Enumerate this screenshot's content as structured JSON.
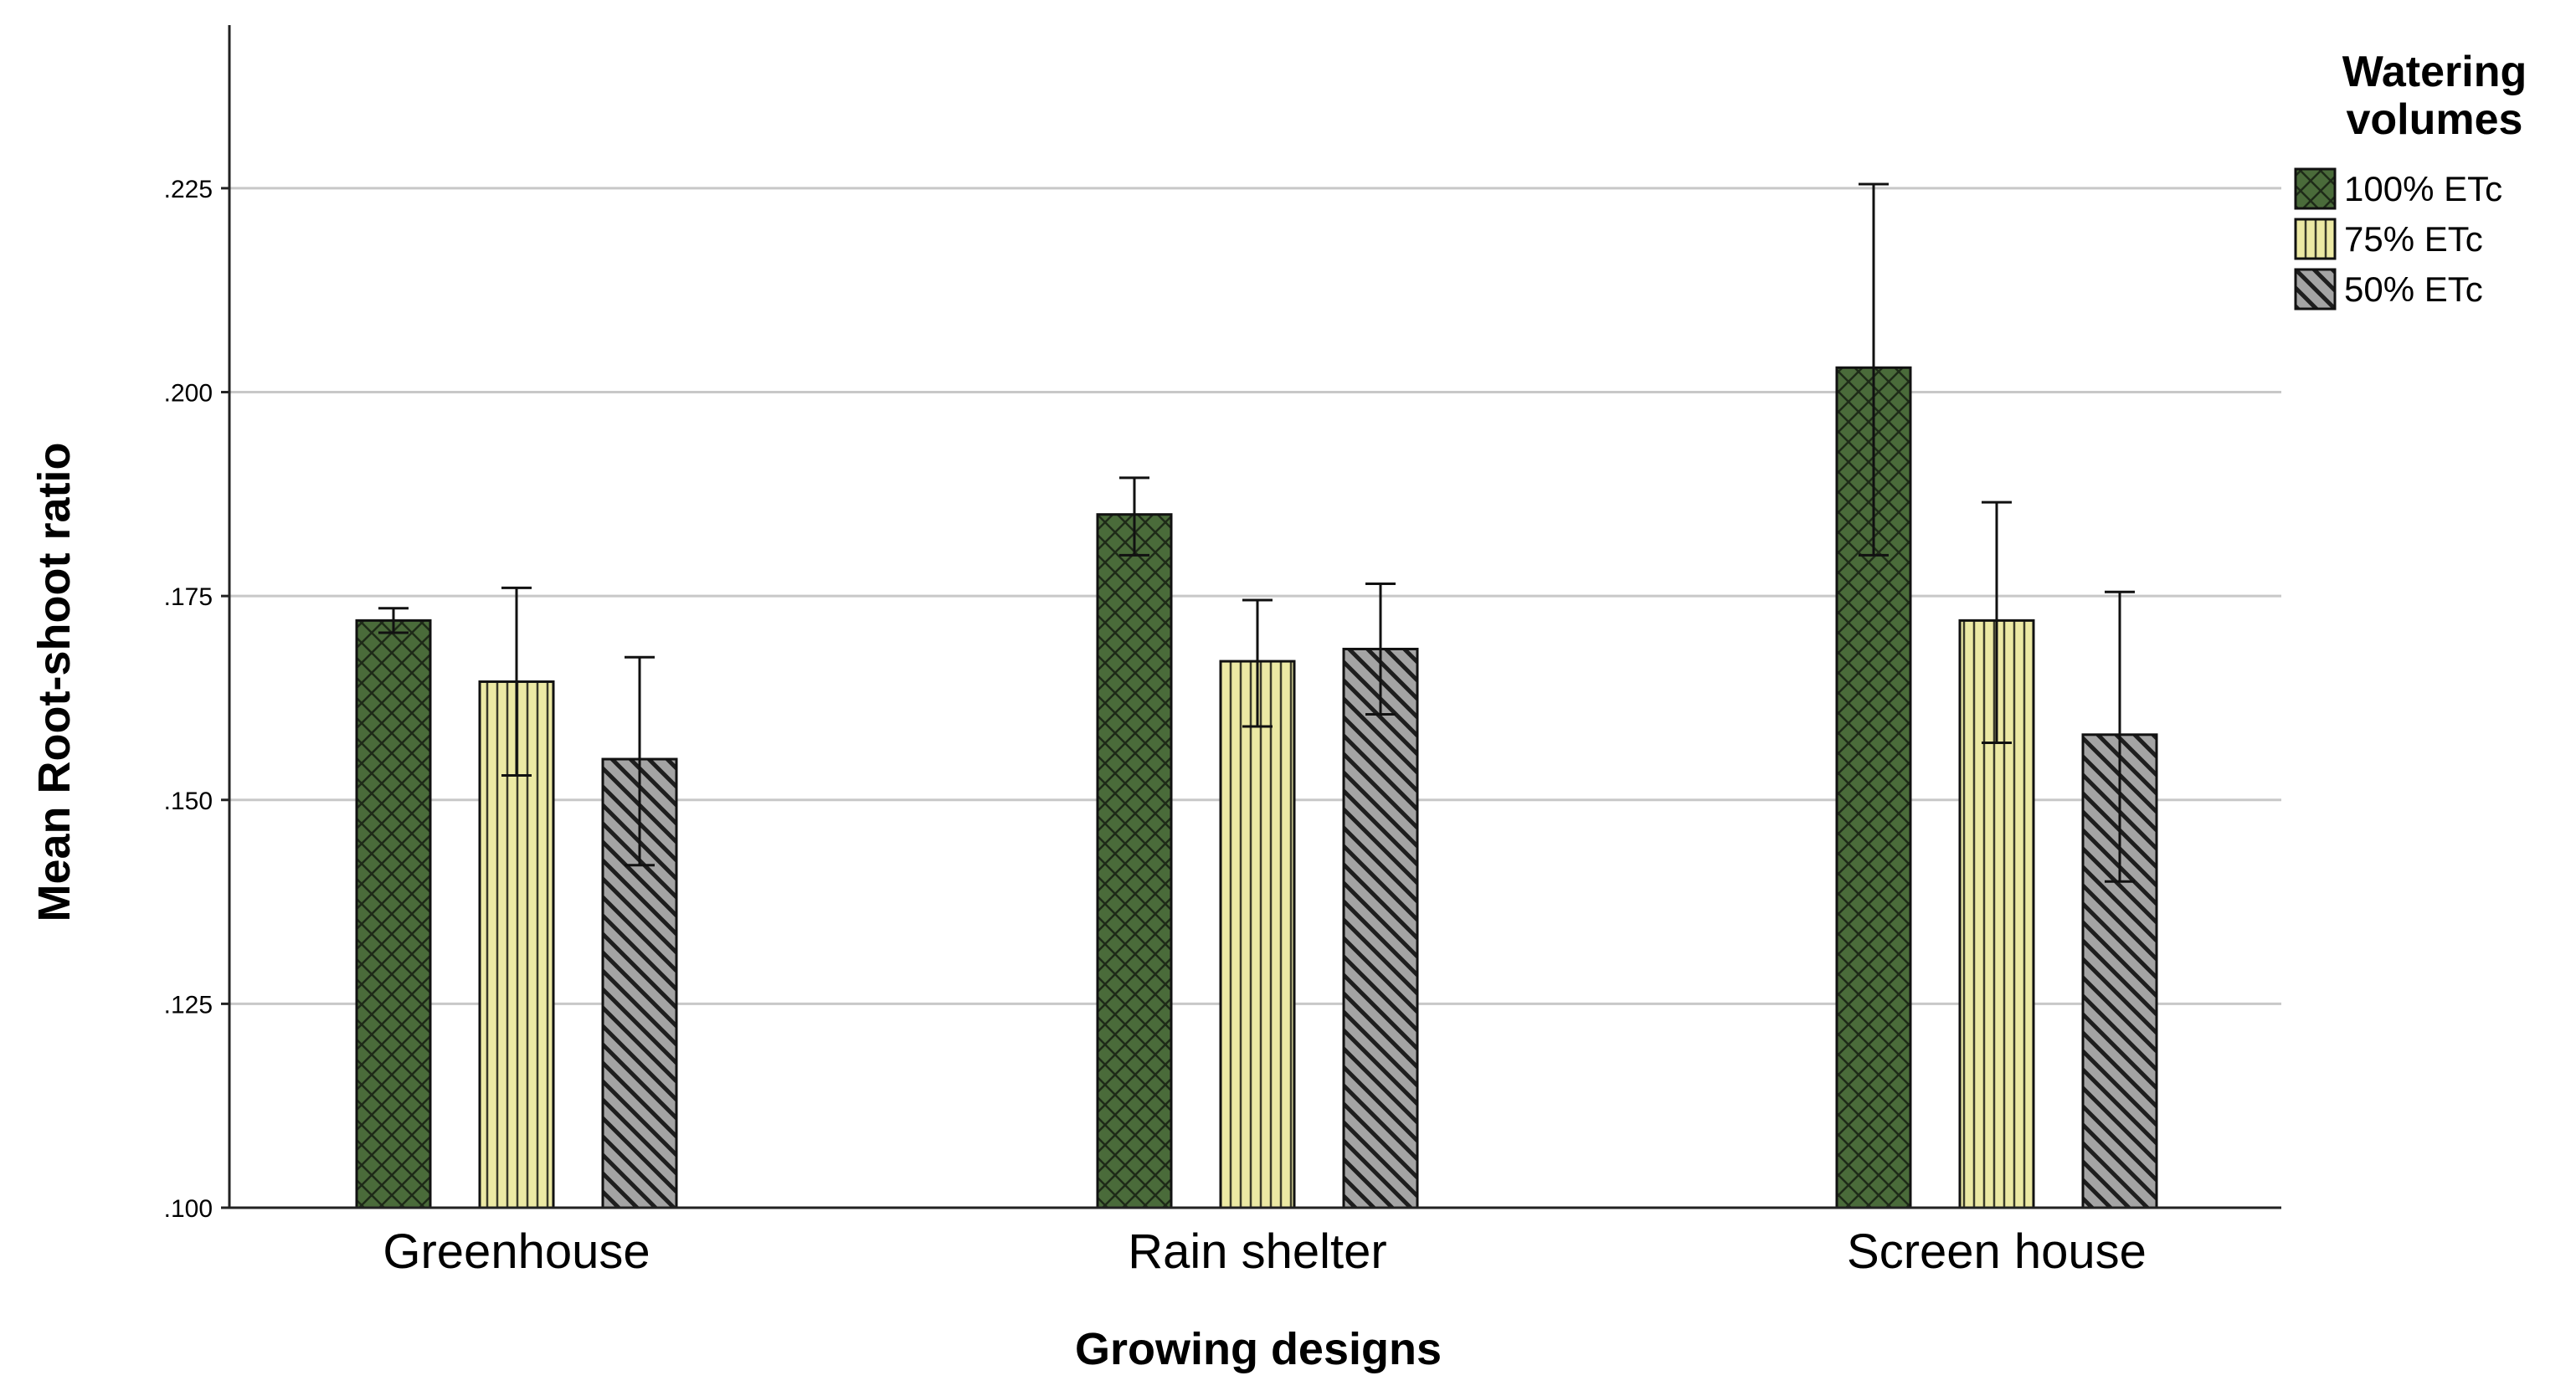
{
  "chart_data": {
    "type": "bar",
    "title": "",
    "xlabel": "Growing designs",
    "ylabel": "Mean Root-shoot ratio",
    "ylim": [
      0.1,
      0.245
    ],
    "yticks": [
      0.1,
      0.125,
      0.15,
      0.175,
      0.2,
      0.225
    ],
    "ytick_labels": [
      ".100",
      ".125",
      ".150",
      ".175",
      ".200",
      ".225"
    ],
    "grid": true,
    "categories": [
      "Greenhouse",
      "Rain shelter",
      "Screen house"
    ],
    "legend": {
      "title": "Watering volumes",
      "position": "top-right"
    },
    "series": [
      {
        "name": "100% ETc",
        "color": "#4a6b3a",
        "pattern": "crosshatch",
        "values": [
          0.172,
          0.185,
          0.203
        ],
        "err_low": [
          0.1705,
          0.18,
          0.18
        ],
        "err_high": [
          0.1735,
          0.1895,
          0.2255
        ]
      },
      {
        "name": "75% ETc",
        "color": "#ece9a4",
        "pattern": "vertical",
        "values": [
          0.1645,
          0.167,
          0.172
        ],
        "err_low": [
          0.153,
          0.159,
          0.157
        ],
        "err_high": [
          0.176,
          0.1745,
          0.1865
        ]
      },
      {
        "name": "50% ETc",
        "color": "#a4a4a4",
        "pattern": "diagonal",
        "values": [
          0.155,
          0.1685,
          0.158
        ],
        "err_low": [
          0.142,
          0.1605,
          0.14
        ],
        "err_high": [
          0.1675,
          0.1765,
          0.1755
        ]
      }
    ]
  }
}
